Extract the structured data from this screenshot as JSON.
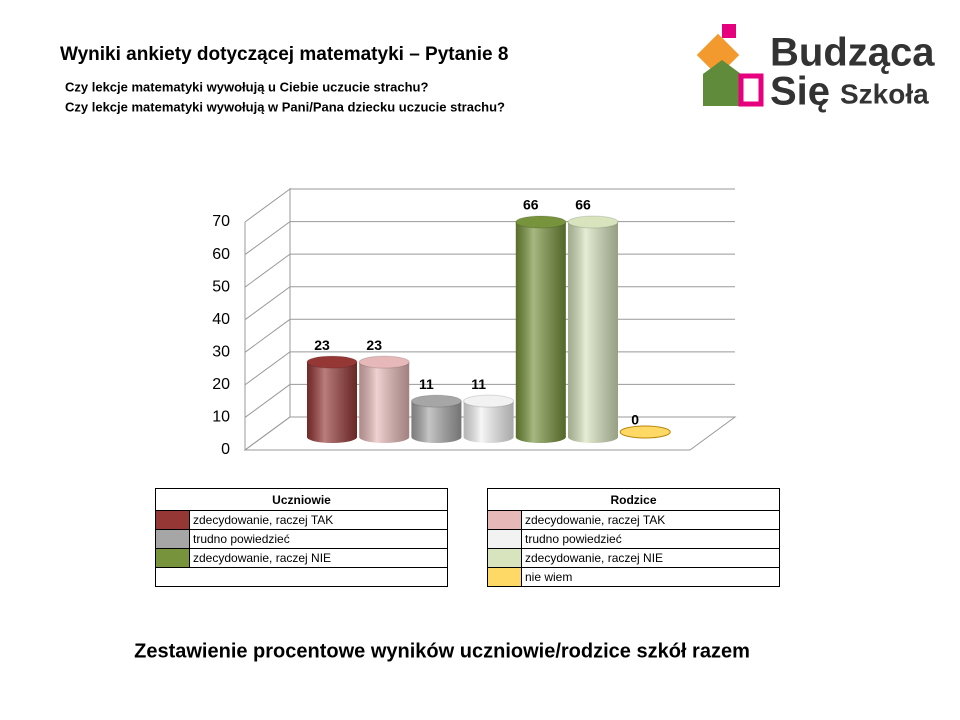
{
  "chart_data": {
    "type": "bar",
    "title": "Wyniki ankiety dotyczącej matematyki – Pytanie 8",
    "subtitle": [
      "Czy lekcje matematyki wywołują u Ciebie uczucie strachu?",
      "Czy lekcje matematyki wywołują w Pani/Pana dziecku uczucie strachu?"
    ],
    "ylim": [
      0,
      70
    ],
    "yticks": [
      0,
      10,
      20,
      30,
      40,
      50,
      60,
      70
    ],
    "grid": true,
    "groups": [
      {
        "title": "Uczniowie",
        "items": [
          {
            "name": "zdecydowanie, raczej TAK",
            "color": "#953735",
            "value": 23
          },
          {
            "name": "trudno powiedzieć",
            "color": "#a6a6a6",
            "value": 11
          },
          {
            "name": "zdecydowanie, raczej NIE",
            "color": "#77933c",
            "value": 66
          }
        ]
      },
      {
        "title": "Rodzice",
        "items": [
          {
            "name": "zdecydowanie, raczej TAK",
            "color": "#e6b9b8",
            "value": 23
          },
          {
            "name": "trudno powiedzieć",
            "color": "#f2f2f2",
            "value": 11
          },
          {
            "name": "zdecydowanie, raczej NIE",
            "color": "#d7e4bd",
            "value": 66
          },
          {
            "name": "nie wiem",
            "color": "#ffd966",
            "value": 0
          }
        ]
      }
    ]
  },
  "footer": "Zestawienie procentowe wyników uczniowie/rodzice szkół razem",
  "logo": [
    "Budząca",
    "Się",
    "Szkoła"
  ]
}
